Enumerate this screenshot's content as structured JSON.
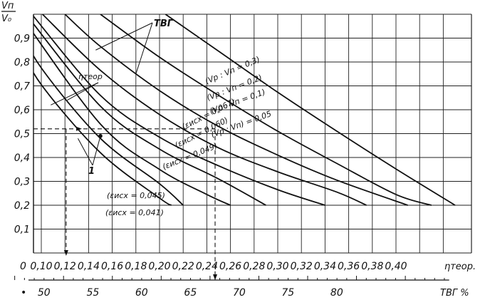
{
  "chart_data": {
    "type": "line",
    "y_label_top": "Vп",
    "y_label_bottom": "V₀",
    "ylim": [
      0,
      1.0
    ],
    "y_ticks": [
      {
        "v": 0.1,
        "label": "0,1"
      },
      {
        "v": 0.2,
        "label": "0,2"
      },
      {
        "v": 0.3,
        "label": "0,3"
      },
      {
        "v": 0.4,
        "label": "0,4"
      },
      {
        "v": 0.5,
        "label": "0,5"
      },
      {
        "v": 0.6,
        "label": "0,6"
      },
      {
        "v": 0.7,
        "label": "0,7"
      },
      {
        "v": 0.8,
        "label": "0,8"
      },
      {
        "v": 0.9,
        "label": "0,9"
      }
    ],
    "origin_label": "0",
    "x_axis_label": "ηтеор.",
    "xlim": [
      0.08,
      0.45
    ],
    "x_ticks": [
      {
        "v": 0.1,
        "label": "0,10"
      },
      {
        "v": 0.12,
        "label": "0,12"
      },
      {
        "v": 0.14,
        "label": "0,14"
      },
      {
        "v": 0.16,
        "label": "0,16"
      },
      {
        "v": 0.18,
        "label": "0,18"
      },
      {
        "v": 0.2,
        "label": "0,20"
      },
      {
        "v": 0.22,
        "label": "0,22"
      },
      {
        "v": 0.24,
        "label": "0,24"
      },
      {
        "v": 0.26,
        "label": "0,26"
      },
      {
        "v": 0.28,
        "label": "0,28"
      },
      {
        "v": 0.3,
        "label": "0,30"
      },
      {
        "v": 0.32,
        "label": "0,32"
      },
      {
        "v": 0.34,
        "label": "0,34"
      },
      {
        "v": 0.36,
        "label": "0,36"
      },
      {
        "v": 0.38,
        "label": "0,38"
      },
      {
        "v": 0.4,
        "label": "0,40"
      }
    ],
    "x2_axis_label": "ТВГ %",
    "x2_ticks": [
      {
        "eta": 0.085,
        "label": "•"
      },
      {
        "eta": 0.1023,
        "label": "50"
      },
      {
        "eta": 0.1436,
        "label": "55"
      },
      {
        "eta": 0.1848,
        "label": "60"
      },
      {
        "eta": 0.2261,
        "label": "65"
      },
      {
        "eta": 0.2674,
        "label": "70"
      },
      {
        "eta": 0.3086,
        "label": "75"
      },
      {
        "eta": 0.3499,
        "label": "80"
      }
    ],
    "series": [
      {
        "name": "(Vр : Vп = 0,3)",
        "points": [
          [
            0.205,
            1.0
          ],
          [
            0.25,
            0.845
          ],
          [
            0.3,
            0.673
          ],
          [
            0.35,
            0.51
          ],
          [
            0.4,
            0.352
          ],
          [
            0.45,
            0.2
          ]
        ]
      },
      {
        "name": "(Vр : Vп = 0,2)",
        "points": [
          [
            0.15,
            1.0
          ],
          [
            0.2,
            0.82
          ],
          [
            0.25,
            0.66
          ],
          [
            0.3,
            0.51
          ],
          [
            0.35,
            0.375
          ],
          [
            0.4,
            0.245
          ],
          [
            0.43,
            0.2
          ]
        ]
      },
      {
        "name": "(Vр : Vп = 0,1)",
        "points": [
          [
            0.12,
            1.0
          ],
          [
            0.15,
            0.865
          ],
          [
            0.2,
            0.68
          ],
          [
            0.25,
            0.53
          ],
          [
            0.3,
            0.41
          ],
          [
            0.35,
            0.305
          ],
          [
            0.41,
            0.2
          ]
        ]
      },
      {
        "name": "(Vр : Vп = 0,05)",
        "points": [
          [
            0.101,
            1.0
          ],
          [
            0.15,
            0.765
          ],
          [
            0.2,
            0.58
          ],
          [
            0.25,
            0.44
          ],
          [
            0.3,
            0.34
          ],
          [
            0.35,
            0.255
          ],
          [
            0.375,
            0.2
          ]
        ]
      },
      {
        "name": "(εисх = 0,067)",
        "points": [
          [
            0.092,
            1.0
          ],
          [
            0.15,
            0.66
          ],
          [
            0.2,
            0.485
          ],
          [
            0.25,
            0.365
          ],
          [
            0.3,
            0.265
          ],
          [
            0.34,
            0.2
          ]
        ]
      },
      {
        "name": "(εисх = 0,060)",
        "points": [
          [
            0.087,
            1.0
          ],
          [
            0.15,
            0.615
          ],
          [
            0.2,
            0.435
          ],
          [
            0.25,
            0.31
          ],
          [
            0.29,
            0.2
          ]
        ]
      },
      {
        "name": "(εисх = 0,049)",
        "points": [
          [
            0.082,
            1.0
          ],
          [
            0.15,
            0.54
          ],
          [
            0.2,
            0.35
          ],
          [
            0.24,
            0.245
          ],
          [
            0.26,
            0.2
          ]
        ]
      },
      {
        "name": "(εисх = 0,045)",
        "points": [
          [
            0.08,
            0.96
          ],
          [
            0.1,
            0.775
          ],
          [
            0.15,
            0.48
          ],
          [
            0.2,
            0.29
          ],
          [
            0.22,
            0.2
          ]
        ]
      },
      {
        "name": "(εисх = 0,041)",
        "points": [
          [
            0.08,
            0.89
          ],
          [
            0.1,
            0.705
          ],
          [
            0.15,
            0.42
          ],
          [
            0.2,
            0.23
          ],
          [
            0.21,
            0.2
          ]
        ]
      }
    ],
    "reference_lines": {
      "y": 0.52,
      "x_eta": 0.121,
      "x_tvg_eta": 0.247
    },
    "marked_point": {
      "eta": 0.15,
      "y": 0.49
    },
    "annotations": {
      "tvg": "ТВГ",
      "eta_teor": "ηтеор",
      "one": "1",
      "vr_03": "(Vр : Vп = 0,3)",
      "vr_02": "(Vр : Vп = 0,2)",
      "vr_01": "(Vр : Vп = 0,1)",
      "vr_005": "(Vр : Vп) = 0,05",
      "eps_067": "(εисх = 0,067)",
      "eps_060": "(εисх = 0,060)",
      "eps_049": "(εисх = 0,049)",
      "eps_045": "(εисх = 0,045)",
      "eps_041": "(εисх = 0,041)"
    }
  }
}
